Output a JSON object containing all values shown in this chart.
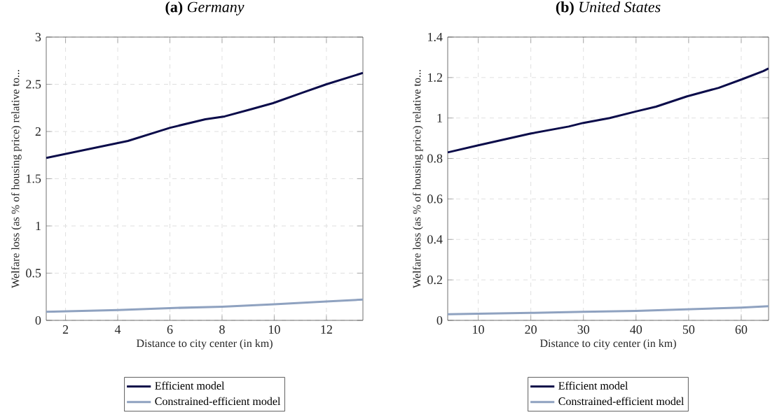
{
  "chart_data": [
    {
      "type": "line",
      "title": "**(a)** *Germany*",
      "xlabel": "Distance to city center (in km)",
      "ylabel": "Welfare loss (as % of housing price) relative to...",
      "series": [
        {
          "name": "Efficient model",
          "color": "#0b0c4a",
          "x": [
            1.26,
            4.39,
            6.01,
            7.36,
            8.1,
            9.03,
            9.95,
            11.07,
            12.0,
            13.4
          ],
          "values": [
            1.72,
            1.9,
            2.04,
            2.13,
            2.16,
            2.23,
            2.3,
            2.41,
            2.5,
            2.62
          ]
        },
        {
          "name": "Constrained-efficient model",
          "color": "#8fa2c0",
          "x": [
            1.26,
            4,
            6,
            8,
            10,
            12,
            13.4
          ],
          "values": [
            0.09,
            0.11,
            0.13,
            0.145,
            0.17,
            0.2,
            0.22
          ]
        }
      ],
      "xlim": [
        1.26,
        13.4
      ],
      "ylim": [
        0,
        3
      ],
      "xticks": [
        2,
        4,
        6,
        8,
        10,
        12
      ],
      "yticks": [
        0,
        0.5,
        1,
        1.5,
        2,
        2.5,
        3
      ],
      "grid": true,
      "legend": "bottom",
      "line_style": "solid",
      "marker": "none"
    },
    {
      "type": "line",
      "title": "**(b)** *United States*",
      "xlabel": "Distance to city center (in km)",
      "ylabel": "Welfare loss (as % of housing price) relative to...",
      "series": [
        {
          "name": "Efficient model",
          "color": "#0b0c4a",
          "x": [
            4.2,
            10,
            19.9,
            27.2,
            30,
            35,
            40.1,
            43.8,
            49.7,
            55.7,
            60,
            64.2,
            65.2
          ],
          "values": [
            0.83,
            0.865,
            0.923,
            0.958,
            0.976,
            1.0,
            1.033,
            1.056,
            1.107,
            1.149,
            1.19,
            1.232,
            1.245
          ]
        },
        {
          "name": "Constrained-efficient model",
          "color": "#8fa2c0",
          "x": [
            4.2,
            10,
            20,
            30,
            40,
            50,
            60,
            65.2
          ],
          "values": [
            0.03,
            0.033,
            0.037,
            0.042,
            0.047,
            0.055,
            0.063,
            0.07
          ]
        }
      ],
      "xlim": [
        4.2,
        65.2
      ],
      "ylim": [
        0,
        1.4
      ],
      "xticks": [
        10,
        20,
        30,
        40,
        50,
        60
      ],
      "yticks": [
        0,
        0.2,
        0.4,
        0.6,
        0.8,
        1,
        1.2,
        1.4
      ],
      "grid": true,
      "legend": "bottom",
      "line_style": "solid",
      "marker": "none"
    }
  ]
}
